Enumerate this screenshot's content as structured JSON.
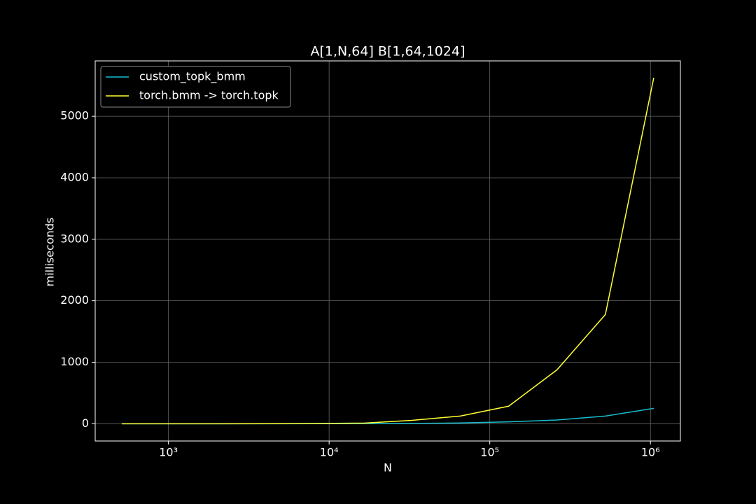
{
  "chart_data": {
    "type": "line",
    "title": "A[1,N,64] B[1,64,1024]",
    "xlabel": "N",
    "ylabel": "milliseconds",
    "x": [
      512,
      1024,
      2048,
      4096,
      8192,
      16384,
      32768,
      65536,
      131072,
      262144,
      524288,
      1048576
    ],
    "series": [
      {
        "name": "custom_topk_bmm",
        "color": "#17becf",
        "values": [
          0,
          0,
          0,
          0,
          1,
          2,
          5,
          12,
          30,
          60,
          125,
          250
        ]
      },
      {
        "name": "torch.bmm -> torch.topk",
        "color": "#ffff33",
        "values": [
          0,
          0,
          0,
          1,
          3,
          10,
          55,
          125,
          285,
          877,
          1777,
          5627
        ]
      }
    ],
    "xscale": "log",
    "xlim": [
      350,
      1536000
    ],
    "xticks": [
      {
        "value": 1000,
        "label": "10³"
      },
      {
        "value": 10000,
        "label": "10⁴"
      },
      {
        "value": 100000,
        "label": "10⁵"
      },
      {
        "value": 1000000,
        "label": "10⁶"
      }
    ],
    "ylim": [
      -281,
      5901
    ],
    "yticks": [
      0,
      1000,
      2000,
      3000,
      4000,
      5000
    ],
    "grid": true,
    "legend": "upper-left"
  }
}
